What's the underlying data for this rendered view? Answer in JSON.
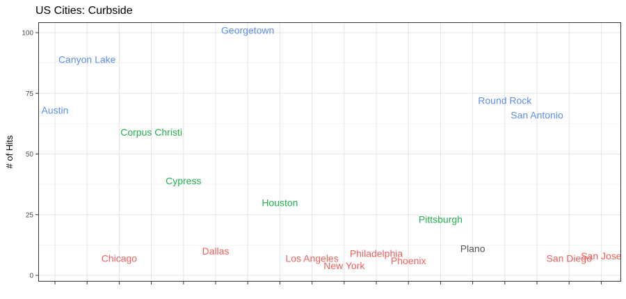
{
  "chart_data": {
    "type": "scatter",
    "title": "US Cities: Curbside",
    "xlabel": "",
    "ylabel": "# of Hits",
    "ylim": [
      0,
      100
    ],
    "yticks": [
      0,
      25,
      50,
      75,
      100
    ],
    "x_tick_count": 18,
    "grid": true,
    "legend": "none",
    "colors": {
      "red": "#f0605b",
      "green": "#22b14c",
      "blue": "#5a8ef0",
      "gray": "#555555"
    },
    "points": [
      {
        "label": "Austin",
        "x": 1,
        "y": 68,
        "color": "blue"
      },
      {
        "label": "Canyon Lake",
        "x": 2,
        "y": 89,
        "color": "blue"
      },
      {
        "label": "Chicago",
        "x": 3,
        "y": 7,
        "color": "red"
      },
      {
        "label": "Corpus Christi",
        "x": 4,
        "y": 59,
        "color": "green"
      },
      {
        "label": "Cypress",
        "x": 5,
        "y": 39,
        "color": "green"
      },
      {
        "label": "Dallas",
        "x": 6,
        "y": 10,
        "color": "red"
      },
      {
        "label": "Georgetown",
        "x": 7,
        "y": 101,
        "color": "blue"
      },
      {
        "label": "Houston",
        "x": 8,
        "y": 30,
        "color": "green"
      },
      {
        "label": "Los Angeles",
        "x": 9,
        "y": 7,
        "color": "red"
      },
      {
        "label": "New York",
        "x": 10,
        "y": 4,
        "color": "red"
      },
      {
        "label": "Philadelphia",
        "x": 11,
        "y": 9,
        "color": "red"
      },
      {
        "label": "Phoenix",
        "x": 12,
        "y": 6,
        "color": "red"
      },
      {
        "label": "Pittsburgh",
        "x": 13,
        "y": 23,
        "color": "green"
      },
      {
        "label": "Plano",
        "x": 14,
        "y": 11,
        "color": "gray"
      },
      {
        "label": "Round Rock",
        "x": 15,
        "y": 72,
        "color": "blue"
      },
      {
        "label": "San Antonio",
        "x": 16,
        "y": 66,
        "color": "blue"
      },
      {
        "label": "San Diego",
        "x": 17,
        "y": 7,
        "color": "red"
      },
      {
        "label": "San Jose",
        "x": 18,
        "y": 8,
        "color": "red"
      }
    ]
  }
}
